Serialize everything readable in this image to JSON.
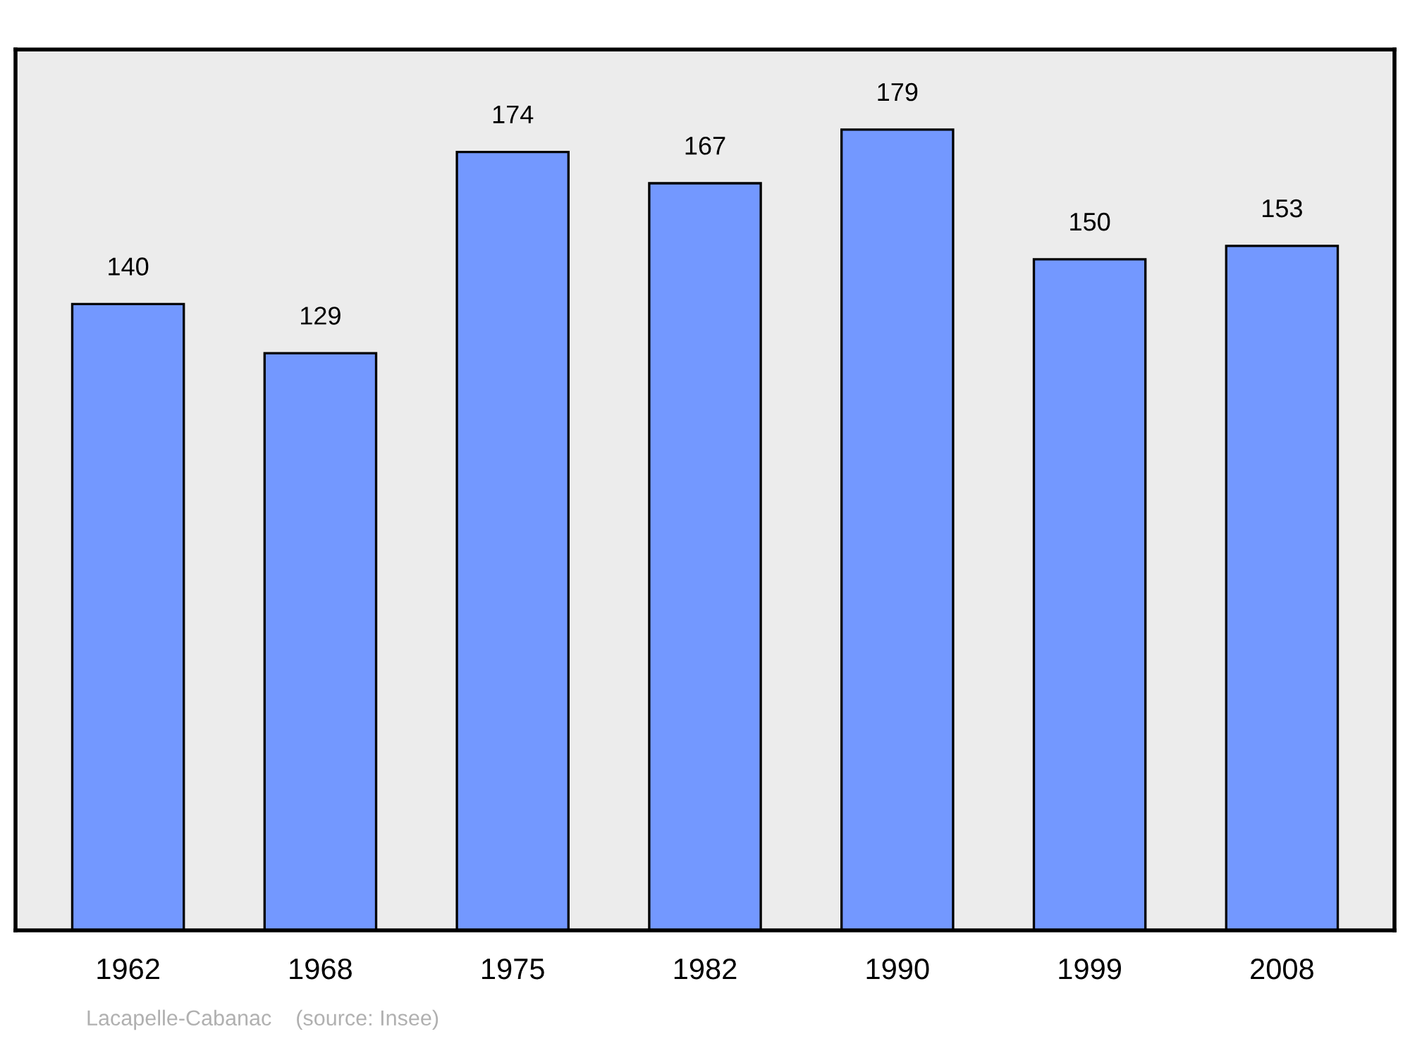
{
  "chart_data": {
    "type": "bar",
    "categories": [
      "1962",
      "1968",
      "1975",
      "1982",
      "1990",
      "1999",
      "2008"
    ],
    "values": [
      140,
      129,
      174,
      167,
      179,
      150,
      153
    ],
    "color": "#7398ff",
    "data_labels": true,
    "grid": false,
    "tick_labels": "x",
    "annotations": [
      "Lacapelle-Cabanac    (source: Insee)"
    ]
  }
}
